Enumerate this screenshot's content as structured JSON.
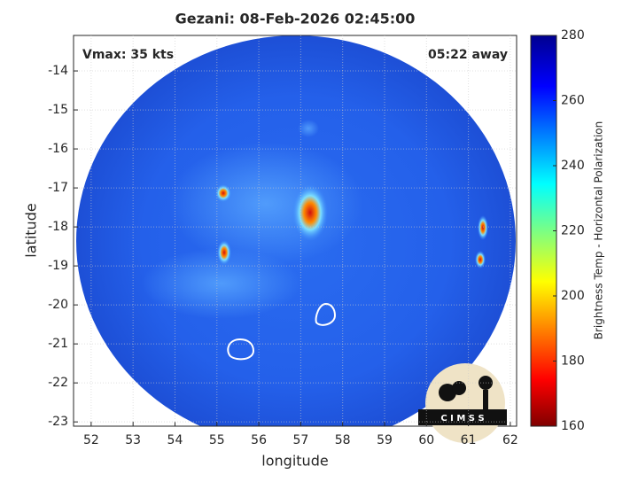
{
  "chart_data": {
    "type": "image",
    "title": "Gezani: 08-Feb-2026 02:45:00",
    "xlabel": "longitude",
    "ylabel": "latitude",
    "annotations": [
      "Vmax: 35 kts",
      "05:22 away"
    ],
    "xlim": [
      51.58,
      62.15
    ],
    "xticks": [
      52,
      53,
      54,
      55,
      56,
      57,
      58,
      59,
      60,
      61,
      62
    ],
    "ylim": [
      -23.11,
      -13.09
    ],
    "yticks": [
      -23,
      -22,
      -21,
      -20,
      -19,
      -18,
      -17,
      -16,
      -15,
      -14
    ],
    "grid": true,
    "colorbar": {
      "label": "Brightness Temp - Horizontal Polarization",
      "lim": [
        160,
        280
      ],
      "ticks": [
        160,
        180,
        200,
        220,
        240,
        260,
        280
      ]
    },
    "logo": "C I M S S"
  }
}
